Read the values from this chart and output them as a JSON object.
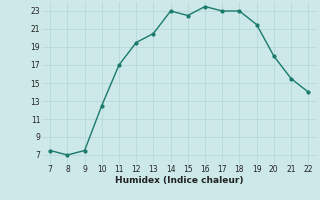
{
  "x": [
    7,
    8,
    9,
    10,
    11,
    12,
    13,
    14,
    15,
    16,
    17,
    18,
    19,
    20,
    21,
    22
  ],
  "y": [
    7.5,
    7.0,
    7.5,
    12.5,
    17.0,
    19.5,
    20.5,
    23.0,
    22.5,
    23.5,
    23.0,
    23.0,
    21.5,
    18.0,
    15.5,
    14.0
  ],
  "xlabel": "Humidex (Indice chaleur)",
  "xlim": [
    6.5,
    22.5
  ],
  "ylim": [
    6,
    24
  ],
  "xticks": [
    7,
    8,
    9,
    10,
    11,
    12,
    13,
    14,
    15,
    16,
    17,
    18,
    19,
    20,
    21,
    22
  ],
  "yticks": [
    7,
    9,
    11,
    13,
    15,
    17,
    19,
    21,
    23
  ],
  "line_color": "#1a7a6e",
  "marker_color": "#1a7a6e",
  "bg_color": "#cde8e8",
  "grid_color": "#b8d8d8"
}
